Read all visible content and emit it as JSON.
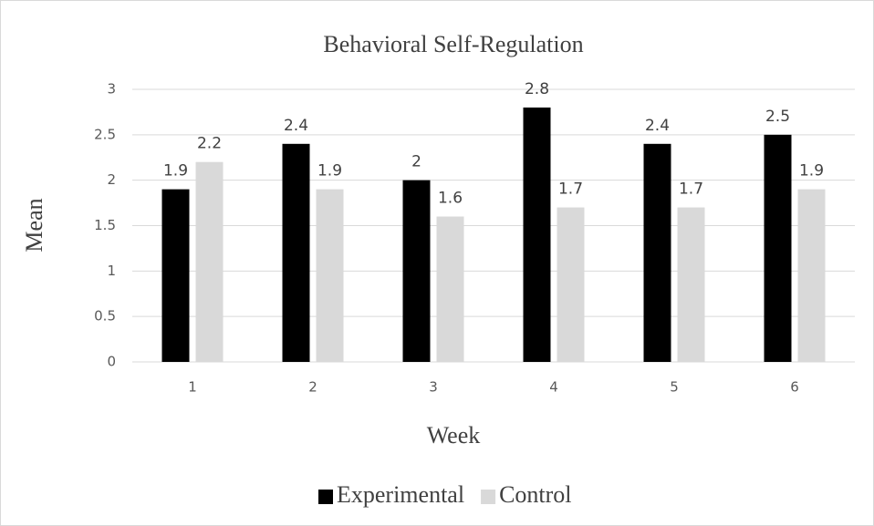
{
  "chart_data": {
    "type": "bar",
    "title": "Behavioral Self-Regulation",
    "x_label": "Week",
    "y_label": "Mean",
    "categories": [
      "1",
      "2",
      "3",
      "4",
      "5",
      "6"
    ],
    "series": [
      {
        "name": "Experimental",
        "color": "#000000",
        "values": [
          1.9,
          2.4,
          2,
          2.8,
          2.4,
          2.5
        ]
      },
      {
        "name": "Control",
        "color": "#d9d9d9",
        "values": [
          2.2,
          1.9,
          1.6,
          1.7,
          1.7,
          1.9
        ]
      }
    ],
    "ylim": [
      0,
      3
    ],
    "yticks": [
      0,
      0.5,
      1,
      1.5,
      2,
      2.5,
      3
    ],
    "grid": true,
    "legend": "bottom"
  }
}
